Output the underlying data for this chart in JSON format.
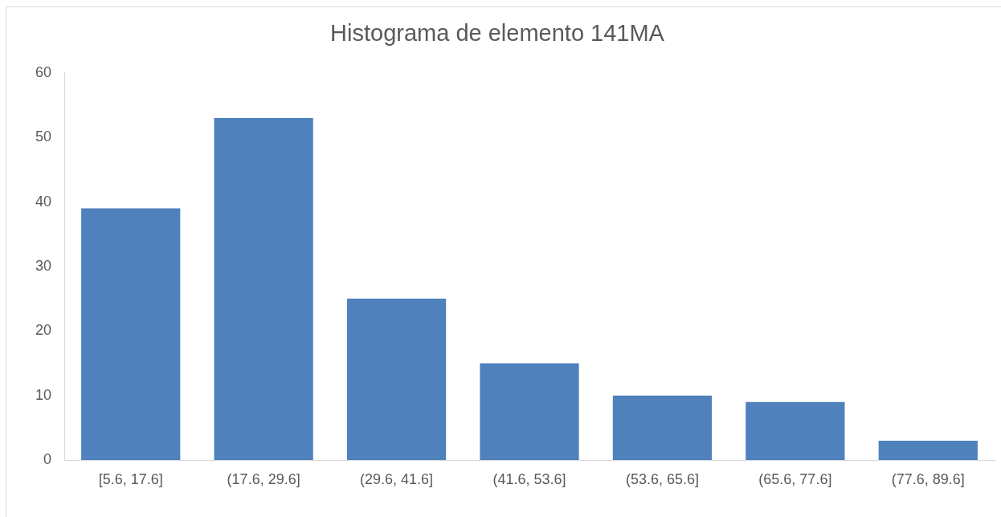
{
  "chart_data": {
    "type": "bar",
    "title": "Histograma de elemento 141MA",
    "categories": [
      "[5.6, 17.6]",
      "(17.6, 29.6]",
      "(29.6, 41.6]",
      "(41.6, 53.6]",
      "(53.6, 65.6]",
      "(65.6, 77.6]",
      "(77.6, 89.6]"
    ],
    "values": [
      39,
      53,
      25,
      15,
      10,
      9,
      3
    ],
    "color": "#4f81bd",
    "ylim": [
      0,
      60
    ],
    "yticks": [
      0,
      10,
      20,
      30,
      40,
      50,
      60
    ]
  }
}
